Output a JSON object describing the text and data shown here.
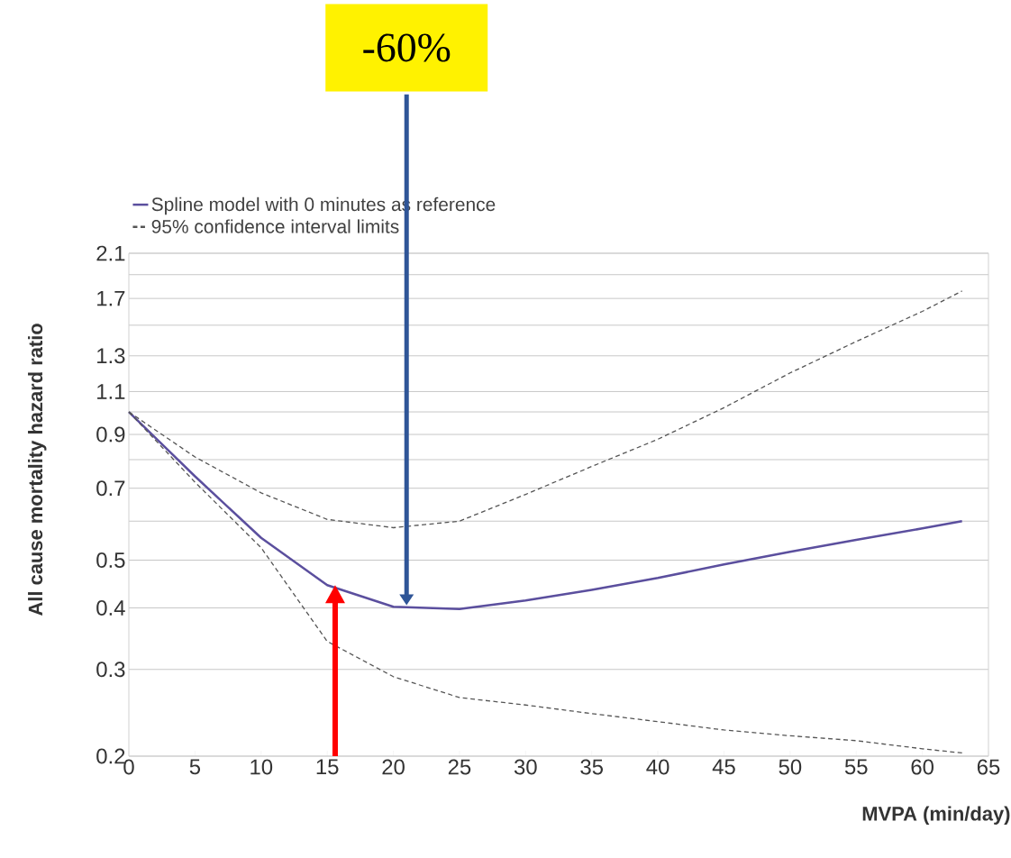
{
  "chart_data": {
    "type": "line",
    "xlabel": "MVPA (min/day)",
    "ylabel": "All cause mortality hazard ratio",
    "x": [
      0,
      5,
      10,
      15,
      20,
      25,
      30,
      35,
      40,
      45,
      50,
      55,
      60,
      63
    ],
    "series": [
      {
        "name": "Spline model with 0 minutes as reference",
        "color": "#5b4f9e",
        "line_style": "solid",
        "values": [
          1.0,
          0.74,
          0.555,
          0.445,
          0.402,
          0.398,
          0.414,
          0.435,
          0.46,
          0.49,
          0.52,
          0.55,
          0.58,
          0.6
        ]
      },
      {
        "name": "95% confidence interval limits",
        "color": "#555555",
        "line_style": "dashed",
        "values": [
          1.0,
          0.81,
          0.685,
          0.605,
          0.582,
          0.6,
          0.68,
          0.775,
          0.88,
          1.02,
          1.2,
          1.39,
          1.6,
          1.76
        ]
      },
      {
        "color": "#555555",
        "line_style": "dashed",
        "values": [
          1.0,
          0.72,
          0.53,
          0.342,
          0.29,
          0.263,
          0.254,
          0.244,
          0.235,
          0.226,
          0.22,
          0.215,
          0.207,
          0.203
        ]
      }
    ],
    "xlim": [
      0,
      65
    ],
    "xticks": [
      0,
      5,
      10,
      15,
      20,
      25,
      30,
      35,
      40,
      45,
      50,
      55,
      60,
      65
    ],
    "ylim": [
      0.2,
      2.1
    ],
    "yticks": [
      0.2,
      0.3,
      0.4,
      0.5,
      {
        "value": 0.6,
        "label": null
      },
      0.7,
      {
        "value": 0.8,
        "label": null
      },
      0.9,
      {
        "value": 1.0,
        "label": null
      },
      1.1,
      1.3,
      {
        "value": 1.5,
        "label": null
      },
      1.7,
      {
        "value": 1.9,
        "label": null
      },
      2.1
    ],
    "log": "y",
    "grid": "y",
    "legend": "top left",
    "annotations": [
      "-60%"
    ]
  }
}
